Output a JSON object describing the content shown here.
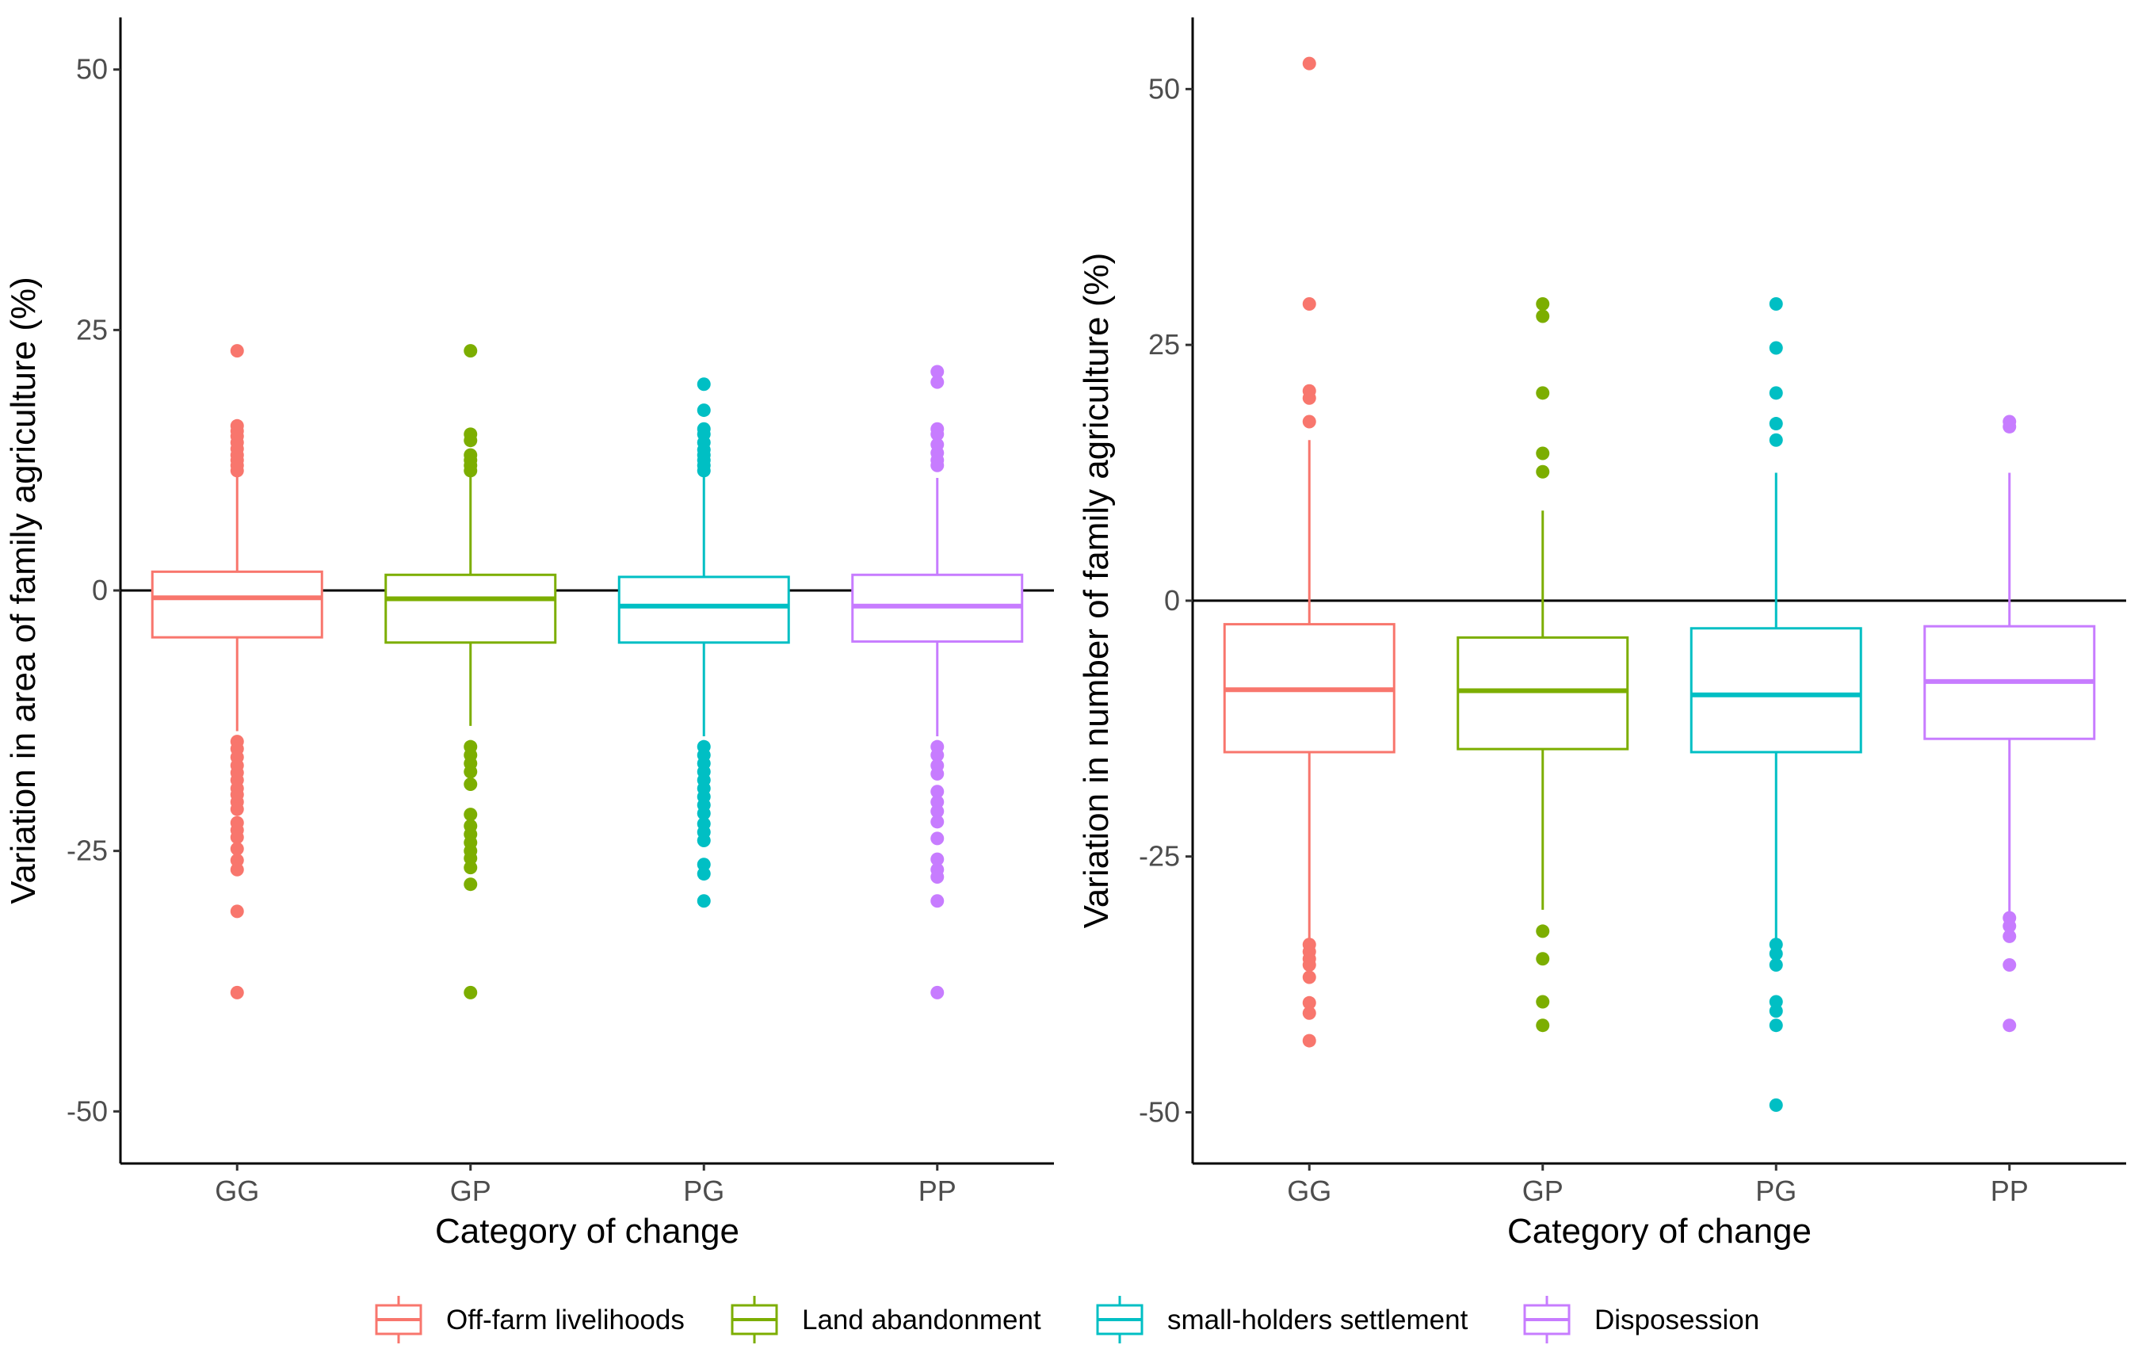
{
  "legend": {
    "items": [
      {
        "label": "Off-farm livelihoods",
        "color": "#F8766D"
      },
      {
        "label": "Land abandonment",
        "color": "#7CAE00"
      },
      {
        "label": "small-holders settlement",
        "color": "#00BFC4"
      },
      {
        "label": "Disposession",
        "color": "#C77CFF"
      }
    ],
    "position": "bottom"
  },
  "chart_data": [
    {
      "type": "box",
      "xlabel": "Category of change",
      "ylabel": "Variation in area of family agriculture (%)",
      "ylim": [
        -55,
        55
      ],
      "yticks": [
        -50,
        -25,
        0,
        25,
        50
      ],
      "reference_line": 0,
      "grid": false,
      "categories": [
        "GG",
        "GP",
        "PG",
        "PP"
      ],
      "boxes": [
        {
          "category": "GG",
          "series": "Off-farm livelihoods",
          "q1": -4.5,
          "median": -0.7,
          "q3": 1.8,
          "whisker_low": -13.5,
          "whisker_high": 11,
          "outliers": [
            23,
            15.8,
            15.3,
            14.8,
            14.2,
            13.6,
            13,
            12.5,
            12,
            11.5,
            -14.5,
            -15.2,
            -16,
            -16.8,
            -17.5,
            -18.2,
            -19,
            -19.6,
            -20.3,
            -21,
            -22.3,
            -23,
            -23.7,
            -24.8,
            -25.9,
            -26.8,
            -30.8,
            -38.6
          ]
        },
        {
          "category": "GP",
          "series": "Land abandonment",
          "q1": -5,
          "median": -0.8,
          "q3": 1.5,
          "whisker_low": -13,
          "whisker_high": 11,
          "outliers": [
            23,
            15,
            14.4,
            13,
            12.5,
            12,
            11.5,
            -15,
            -15.8,
            -16.6,
            -17.4,
            -18.6,
            -21.5,
            -22.6,
            -23.4,
            -24.2,
            -25,
            -25.7,
            -26.6,
            -28.2,
            -38.6
          ]
        },
        {
          "category": "PG",
          "series": "small-holders settlement",
          "q1": -5,
          "median": -1.5,
          "q3": 1.3,
          "whisker_low": -14,
          "whisker_high": 11,
          "outliers": [
            19.8,
            17.3,
            15.5,
            15,
            14.2,
            13.5,
            13,
            12.5,
            12,
            11.5,
            -15,
            -15.8,
            -16.6,
            -17.4,
            -18.2,
            -19,
            -19.8,
            -20.6,
            -21.4,
            -22.4,
            -23.2,
            -24,
            -26.3,
            -27.2,
            -29.8
          ]
        },
        {
          "category": "PP",
          "series": "Disposession",
          "q1": -4.9,
          "median": -1.5,
          "q3": 1.5,
          "whisker_low": -14,
          "whisker_high": 10.8,
          "outliers": [
            21,
            20,
            15.5,
            15,
            14,
            13.2,
            12.5,
            12,
            -15,
            -15.8,
            -16.8,
            -17.6,
            -19.3,
            -20.3,
            -21.2,
            -22.2,
            -23.8,
            -25.8,
            -26.8,
            -27.5,
            -29.8,
            -38.6
          ]
        }
      ]
    },
    {
      "type": "box",
      "xlabel": "Category of change",
      "ylabel": "Variation in number of family agriculture (%)",
      "ylim": [
        -55,
        57
      ],
      "yticks": [
        -50,
        -25,
        0,
        25,
        50
      ],
      "reference_line": 0,
      "grid": false,
      "categories": [
        "GG",
        "GP",
        "PG",
        "PP"
      ],
      "boxes": [
        {
          "category": "GG",
          "series": "Off-farm livelihoods",
          "q1": -14.8,
          "median": -8.7,
          "q3": -2.3,
          "whisker_low": -33,
          "whisker_high": 15.7,
          "outliers": [
            52.5,
            29,
            20.5,
            19.8,
            17.5,
            -33.6,
            -34.3,
            -35,
            -35.6,
            -36.8,
            -39.3,
            -40.3,
            -43
          ]
        },
        {
          "category": "GP",
          "series": "Land abandonment",
          "q1": -14.5,
          "median": -8.8,
          "q3": -3.6,
          "whisker_low": -30.2,
          "whisker_high": 8.8,
          "outliers": [
            29,
            27.8,
            20.3,
            14.4,
            12.6,
            -32.3,
            -35,
            -39.2,
            -41.5
          ]
        },
        {
          "category": "PG",
          "series": "small-holders settlement",
          "q1": -14.8,
          "median": -9.2,
          "q3": -2.7,
          "whisker_low": -33,
          "whisker_high": 12.5,
          "outliers": [
            29,
            24.7,
            20.3,
            17.3,
            15.7,
            -33.6,
            -34.5,
            -35.6,
            -39.2,
            -40.1,
            -41.5,
            -49.3
          ]
        },
        {
          "category": "PP",
          "series": "Disposession",
          "q1": -13.5,
          "median": -7.9,
          "q3": -2.5,
          "whisker_low": -30.5,
          "whisker_high": 12.5,
          "outliers": [
            17.5,
            17,
            -31,
            -31.8,
            -32.8,
            -35.6,
            -41.5
          ]
        }
      ]
    }
  ]
}
